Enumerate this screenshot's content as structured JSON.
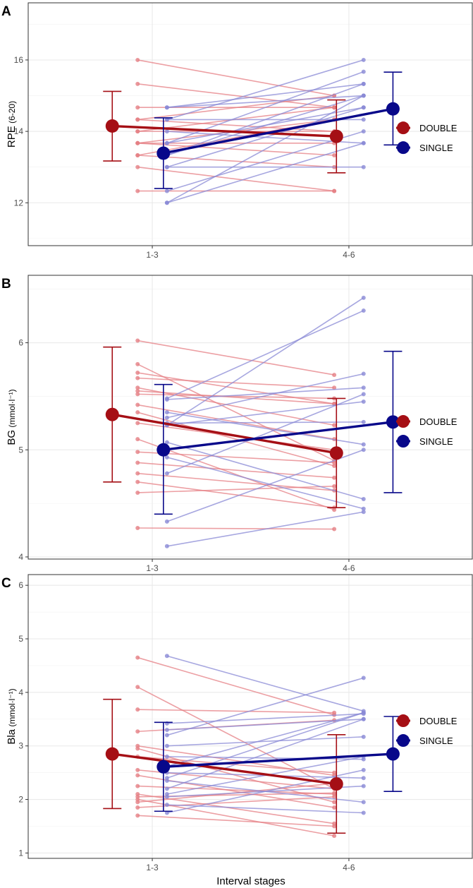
{
  "figure": {
    "xlabel": "Interval stages"
  },
  "colors": {
    "double": "#a50f15",
    "single": "#08088a",
    "double_light": "#e57f84",
    "single_light": "#8a8ad6"
  },
  "chart_data": [
    {
      "panel": "A",
      "type": "line",
      "ylabel_main": "RPE",
      "ylabel_unit": " (6-20)",
      "categories": [
        "1-3",
        "4-6"
      ],
      "ylim": [
        10.8,
        17.6
      ],
      "yticks": [
        12,
        14,
        16
      ],
      "legend": [
        "DOUBLE",
        "SINGLE"
      ],
      "legend_position": "right",
      "grid": true,
      "individual": {
        "DOUBLE": [
          [
            16.0,
            15.0
          ],
          [
            15.33,
            14.67
          ],
          [
            14.67,
            14.67
          ],
          [
            14.33,
            15.0
          ],
          [
            14.0,
            14.0
          ],
          [
            13.67,
            13.33
          ],
          [
            13.33,
            13.0
          ],
          [
            13.0,
            12.33
          ],
          [
            13.67,
            14.33
          ],
          [
            14.33,
            14.0
          ],
          [
            12.33,
            12.33
          ],
          [
            13.67,
            13.67
          ],
          [
            14.0,
            14.67
          ],
          [
            13.33,
            14.33
          ]
        ],
        "SINGLE": [
          [
            12.0,
            15.0
          ],
          [
            12.0,
            13.67
          ],
          [
            12.33,
            14.0
          ],
          [
            13.0,
            13.0
          ],
          [
            13.33,
            15.33
          ],
          [
            13.67,
            15.67
          ],
          [
            14.33,
            16.0
          ],
          [
            14.67,
            15.33
          ],
          [
            14.0,
            13.67
          ],
          [
            13.67,
            14.67
          ],
          [
            14.67,
            15.0
          ],
          [
            13.0,
            14.67
          ],
          [
            14.33,
            14.33
          ],
          [
            13.33,
            15.0
          ]
        ]
      },
      "means": {
        "DOUBLE": {
          "values": [
            14.15,
            13.86
          ],
          "error_low": [
            13.17,
            12.84
          ],
          "error_high": [
            15.12,
            14.88
          ]
        },
        "SINGLE": {
          "values": [
            13.39,
            14.63
          ],
          "error_low": [
            12.4,
            13.62
          ],
          "error_high": [
            14.38,
            15.66
          ]
        }
      }
    },
    {
      "panel": "B",
      "type": "line",
      "ylabel_main": "BG",
      "ylabel_unit": " (mmol·l⁻¹)",
      "categories": [
        "1-3",
        "4-6"
      ],
      "ylim": [
        3.98,
        6.63
      ],
      "yticks": [
        4,
        5,
        6
      ],
      "legend": [
        "DOUBLE",
        "SINGLE"
      ],
      "legend_position": "right",
      "grid": true,
      "individual": {
        "DOUBLE": [
          [
            6.02,
            5.7
          ],
          [
            5.8,
            4.9
          ],
          [
            5.72,
            5.43
          ],
          [
            5.67,
            5.58
          ],
          [
            5.58,
            5.23
          ],
          [
            5.55,
            5.43
          ],
          [
            5.52,
            5.48
          ],
          [
            5.42,
            5.1
          ],
          [
            5.35,
            4.85
          ],
          [
            5.25,
            5.0
          ],
          [
            5.1,
            4.44
          ],
          [
            4.98,
            4.88
          ],
          [
            4.88,
            4.74
          ],
          [
            4.78,
            4.62
          ],
          [
            4.7,
            4.46
          ],
          [
            4.6,
            4.66
          ],
          [
            4.27,
            4.26
          ]
        ],
        "SINGLE": [
          [
            4.1,
            4.42
          ],
          [
            4.33,
            5.0
          ],
          [
            4.78,
            5.52
          ],
          [
            5.07,
            4.54
          ],
          [
            5.23,
            5.45
          ],
          [
            5.25,
            5.26
          ],
          [
            5.35,
            5.05
          ],
          [
            5.48,
            6.3
          ],
          [
            5.47,
            5.58
          ],
          [
            5.3,
            5.71
          ],
          [
            4.93,
            4.45
          ],
          [
            5.23,
            6.42
          ]
        ]
      },
      "means": {
        "DOUBLE": {
          "values": [
            5.33,
            4.97
          ],
          "error_low": [
            4.7,
            4.46
          ],
          "error_high": [
            5.96,
            5.48
          ]
        },
        "SINGLE": {
          "values": [
            5.0,
            5.26
          ],
          "error_low": [
            4.4,
            4.6
          ],
          "error_high": [
            5.61,
            5.92
          ]
        }
      }
    },
    {
      "panel": "C",
      "type": "line",
      "ylabel_main": "Bla",
      "ylabel_unit": " (mmol·l⁻¹)",
      "categories": [
        "1-3",
        "4-6"
      ],
      "ylim": [
        0.9,
        6.2
      ],
      "yticks": [
        1,
        2,
        3,
        4,
        5,
        6
      ],
      "legend": [
        "DOUBLE",
        "SINGLE"
      ],
      "legend_position": "right",
      "grid": true,
      "individual": {
        "DOUBLE": [
          [
            4.65,
            3.58
          ],
          [
            4.1,
            2.2
          ],
          [
            3.68,
            3.62
          ],
          [
            3.27,
            3.48
          ],
          [
            3.0,
            2.45
          ],
          [
            2.95,
            1.95
          ],
          [
            2.8,
            2.5
          ],
          [
            2.55,
            2.2
          ],
          [
            2.1,
            1.55
          ],
          [
            2.05,
            2.12
          ],
          [
            2.0,
            1.32
          ],
          [
            1.95,
            2.3
          ],
          [
            1.85,
            2.05
          ],
          [
            1.7,
            1.5
          ],
          [
            2.45,
            1.85
          ],
          [
            2.25,
            2.1
          ]
        ],
        "SINGLE": [
          [
            4.68,
            3.65
          ],
          [
            3.42,
            3.6
          ],
          [
            3.3,
            3.5
          ],
          [
            3.2,
            4.27
          ],
          [
            3.0,
            3.17
          ],
          [
            2.8,
            2.75
          ],
          [
            2.62,
            3.62
          ],
          [
            2.5,
            2.4
          ],
          [
            2.35,
            1.95
          ],
          [
            2.2,
            3.5
          ],
          [
            2.1,
            2.8
          ],
          [
            1.9,
            1.75
          ],
          [
            1.75,
            2.55
          ],
          [
            2.05,
            2.25
          ],
          [
            2.4,
            3.62
          ]
        ]
      },
      "means": {
        "DOUBLE": {
          "values": [
            2.85,
            2.29
          ],
          "error_low": [
            1.83,
            1.37
          ],
          "error_high": [
            3.87,
            3.21
          ]
        },
        "SINGLE": {
          "values": [
            2.61,
            2.85
          ],
          "error_low": [
            1.78,
            2.15
          ],
          "error_high": [
            3.44,
            3.55
          ]
        }
      }
    }
  ]
}
